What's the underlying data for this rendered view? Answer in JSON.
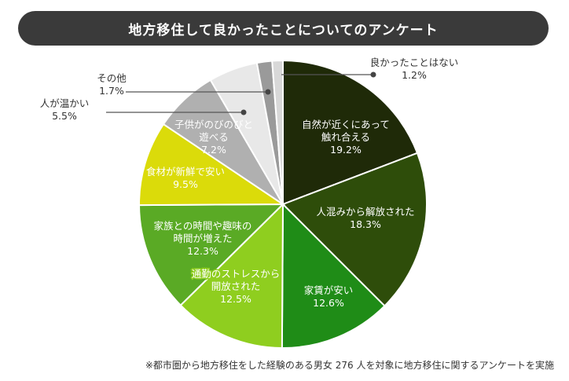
{
  "title": "地方移住して良かったことについてのアンケート",
  "footnote": "※都市圏から地方移住をした経験のある男女 276 人を対象に地方移住に関するアンケートを実施",
  "chart_data": {
    "type": "pie",
    "title": "地方移住して良かったことについてのアンケート",
    "unit": "%",
    "slices": [
      {
        "label": [
          "自然が近くにあって",
          "触れ合える"
        ],
        "value": 19.2,
        "value_text": "19.2%",
        "color": "#1f2a08"
      },
      {
        "label": [
          "人混みから解放された"
        ],
        "value": 18.3,
        "value_text": "18.3%",
        "color": "#2e4d0a"
      },
      {
        "label": [
          "家賃が安い"
        ],
        "value": 12.6,
        "value_text": "12.6%",
        "color": "#1f8c17"
      },
      {
        "label": [
          "通勤のストレスから",
          "開放された"
        ],
        "value": 12.5,
        "value_text": "12.5%",
        "color": "#8fce1f"
      },
      {
        "label": [
          "家族との時間や趣味の",
          "時間が増えた"
        ],
        "value": 12.3,
        "value_text": "12.3%",
        "color": "#5aaa25"
      },
      {
        "label": [
          "食材が新鮮で安い"
        ],
        "value": 9.5,
        "value_text": "9.5%",
        "color": "#dbdb0a"
      },
      {
        "label": [
          "子供がのびのびと",
          "遊べる"
        ],
        "value": 7.2,
        "value_text": "7.2%",
        "color": "#b0b0b0"
      },
      {
        "label": [
          "人が温かい"
        ],
        "value": 5.5,
        "value_text": "5.5%",
        "color": "#e8e8e8"
      },
      {
        "label": [
          "その他"
        ],
        "value": 1.7,
        "value_text": "1.7%",
        "color": "#9a9a9a"
      },
      {
        "label": [
          "良かったことはない"
        ],
        "value": 1.2,
        "value_text": "1.2%",
        "color": "#d8d8d8"
      }
    ]
  }
}
